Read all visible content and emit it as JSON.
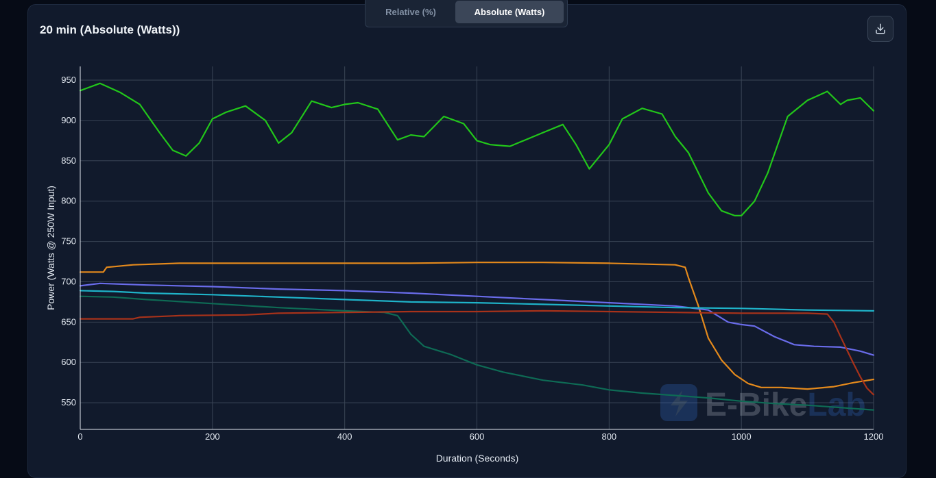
{
  "toggle": {
    "relative_label": "Relative (%)",
    "absolute_label": "Absolute (Watts)",
    "active": "absolute"
  },
  "card": {
    "title": "20 min (Absolute (Watts))",
    "download_icon": "download-icon"
  },
  "watermark": {
    "text_e": "E-",
    "text_bike": "Bike",
    "text_lab": "Lab",
    "icon": "bolt-icon"
  },
  "colors": {
    "background": "#060b16",
    "card": "#111a2c",
    "grid": "#3a4556"
  },
  "chart_data": {
    "type": "line",
    "xlabel": "Duration (Seconds)",
    "ylabel": "Power (Watts @ 250W Input)",
    "xlim": [
      0,
      1200
    ],
    "ylim": [
      517,
      967
    ],
    "xticks": [
      0,
      200,
      400,
      600,
      800,
      1000,
      1200
    ],
    "yticks": [
      550,
      600,
      650,
      700,
      750,
      800,
      850,
      900,
      950
    ],
    "grid": true,
    "series": [
      {
        "color": "#22c71a",
        "x": [
          0,
          30,
          60,
          90,
          120,
          140,
          160,
          180,
          200,
          220,
          250,
          280,
          300,
          320,
          350,
          380,
          400,
          420,
          450,
          480,
          500,
          520,
          550,
          580,
          600,
          620,
          650,
          700,
          730,
          750,
          770,
          800,
          820,
          850,
          880,
          900,
          920,
          950,
          970,
          990,
          1000,
          1020,
          1040,
          1070,
          1100,
          1130,
          1150,
          1160,
          1180,
          1200
        ],
        "y": [
          937,
          946,
          935,
          920,
          885,
          863,
          856,
          872,
          902,
          910,
          918,
          900,
          872,
          885,
          924,
          916,
          920,
          922,
          914,
          876,
          882,
          880,
          905,
          896,
          875,
          870,
          868,
          885,
          895,
          870,
          840,
          870,
          902,
          915,
          908,
          880,
          860,
          810,
          788,
          782,
          782,
          800,
          835,
          905,
          925,
          936,
          920,
          925,
          928,
          912
        ]
      },
      {
        "color": "#e58a1c",
        "x": [
          0,
          35,
          40,
          80,
          150,
          300,
          500,
          600,
          700,
          800,
          900,
          915,
          920,
          935,
          950,
          970,
          990,
          1010,
          1030,
          1060,
          1100,
          1140,
          1170,
          1200
        ],
        "y": [
          712,
          712,
          718,
          721,
          723,
          723,
          723,
          724,
          724,
          723,
          721,
          718,
          705,
          670,
          630,
          603,
          585,
          574,
          569,
          569,
          567,
          570,
          575,
          579
        ]
      },
      {
        "color": "#6a6ceb",
        "x": [
          0,
          30,
          100,
          200,
          300,
          400,
          500,
          600,
          700,
          800,
          900,
          950,
          980,
          1000,
          1020,
          1050,
          1080,
          1110,
          1150,
          1180,
          1200
        ],
        "y": [
          695,
          698,
          696,
          694,
          691,
          689,
          686,
          682,
          678,
          674,
          670,
          665,
          650,
          647,
          645,
          632,
          622,
          620,
          619,
          614,
          609
        ]
      },
      {
        "color": "#1fb3c9",
        "x": [
          0,
          50,
          100,
          200,
          300,
          400,
          500,
          600,
          700,
          800,
          900,
          1000,
          1100,
          1200
        ],
        "y": [
          689,
          688,
          686,
          684,
          681,
          678,
          675,
          674,
          672,
          670,
          668,
          667,
          665,
          664
        ]
      },
      {
        "color": "#0e6b55",
        "x": [
          0,
          50,
          100,
          200,
          300,
          400,
          460,
          480,
          500,
          520,
          560,
          600,
          640,
          700,
          760,
          800,
          850,
          900,
          950,
          1000,
          1050,
          1100,
          1150,
          1200
        ],
        "y": [
          682,
          681,
          678,
          673,
          668,
          664,
          662,
          658,
          635,
          620,
          610,
          597,
          588,
          578,
          572,
          566,
          562,
          559,
          556,
          552,
          549,
          547,
          544,
          541
        ]
      },
      {
        "color": "#a8321a",
        "x": [
          0,
          80,
          90,
          150,
          250,
          300,
          400,
          500,
          600,
          700,
          800,
          900,
          1000,
          1100,
          1130,
          1140,
          1150,
          1160,
          1170,
          1180,
          1190,
          1200
        ],
        "y": [
          654,
          654,
          656,
          658,
          659,
          661,
          662,
          663,
          663,
          664,
          663,
          662,
          661,
          661,
          660,
          650,
          632,
          615,
          598,
          582,
          568,
          560
        ]
      }
    ]
  }
}
